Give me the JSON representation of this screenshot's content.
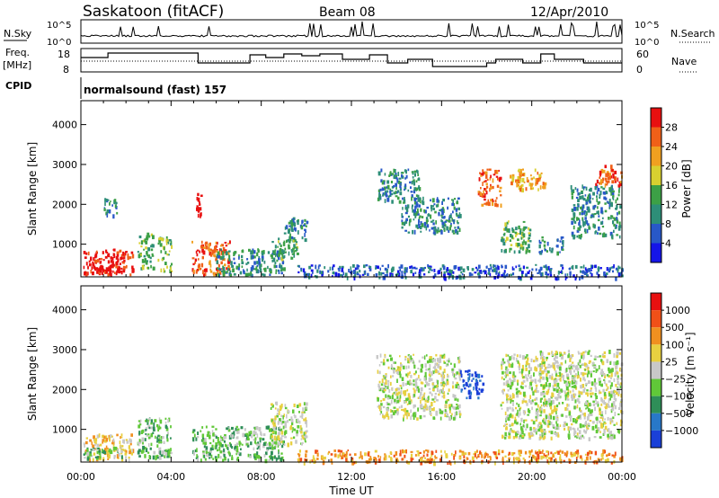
{
  "header": {
    "site": "Saskatoon (fitACF)",
    "beam": "Beam 08",
    "date": "12/Apr/2010"
  },
  "sky_panel": {
    "left_label": "N.Sky",
    "right_label": "N.Search",
    "tick_top": "10^5",
    "tick_bottom": "10^0"
  },
  "freq_panel": {
    "left_label_1": "Freq.",
    "left_label_2": "[MHz]",
    "left_ticks": [
      "18",
      "8"
    ],
    "right_ticks": [
      "60",
      "0"
    ],
    "right_label": "Nave"
  },
  "cpid": {
    "label": "CPID",
    "value": "normalsound (fast) 157"
  },
  "chart_data": [
    {
      "type": "heatmap",
      "quantity": "power",
      "ylabel": "Slant Range [km]",
      "xlabel": "",
      "yticks": [
        "1000",
        "2000",
        "3000",
        "4000"
      ],
      "ylim": [
        180,
        4600
      ],
      "xlim": [
        0,
        24
      ],
      "colorbar": {
        "label": "Power [dB]",
        "ticks": [
          "4",
          "8",
          "12",
          "16",
          "20",
          "24",
          "28"
        ],
        "colors": [
          "#1515e8",
          "#2858c8",
          "#2d8e78",
          "#3ca046",
          "#d8d030",
          "#f0a020",
          "#f06018",
          "#e81010"
        ]
      },
      "regions": [
        {
          "t0": 0.1,
          "t1": 2.3,
          "r0": 250,
          "r1": 900,
          "level": 7
        },
        {
          "t0": 0.1,
          "t1": 1.8,
          "r0": 300,
          "r1": 600,
          "level": 8
        },
        {
          "t0": 1.0,
          "t1": 1.6,
          "r0": 1700,
          "r1": 2200,
          "level": 2
        },
        {
          "t0": 2.5,
          "t1": 3.2,
          "r0": 400,
          "r1": 1300,
          "level": 3
        },
        {
          "t0": 3.4,
          "t1": 4.0,
          "r0": 300,
          "r1": 1200,
          "level": 3
        },
        {
          "t0": 4.9,
          "t1": 6.6,
          "r0": 250,
          "r1": 1100,
          "level": 6
        },
        {
          "t0": 5.1,
          "t1": 5.3,
          "r0": 1700,
          "r1": 2300,
          "level": 8
        },
        {
          "t0": 6.0,
          "t1": 9.0,
          "r0": 250,
          "r1": 900,
          "level": 2
        },
        {
          "t0": 8.4,
          "t1": 9.6,
          "r0": 650,
          "r1": 1200,
          "level": 3
        },
        {
          "t0": 9.0,
          "t1": 10.0,
          "r0": 1100,
          "r1": 1700,
          "level": 2
        },
        {
          "t0": 13.1,
          "t1": 15.0,
          "r0": 2100,
          "r1": 2900,
          "level": 2
        },
        {
          "t0": 14.2,
          "t1": 16.8,
          "r0": 1300,
          "r1": 2200,
          "level": 2
        },
        {
          "t0": 18.6,
          "t1": 19.9,
          "r0": 800,
          "r1": 1600,
          "level": 3
        },
        {
          "t0": 17.6,
          "t1": 18.6,
          "r0": 2000,
          "r1": 2900,
          "level": 6
        },
        {
          "t0": 19.0,
          "t1": 20.6,
          "r0": 2400,
          "r1": 2900,
          "level": 5
        },
        {
          "t0": 20.3,
          "t1": 21.4,
          "r0": 800,
          "r1": 1200,
          "level": 2
        },
        {
          "t0": 21.7,
          "t1": 23.9,
          "r0": 1200,
          "r1": 2500,
          "level": 2
        },
        {
          "t0": 22.8,
          "t1": 24.0,
          "r0": 2500,
          "r1": 3000,
          "level": 6
        },
        {
          "t0": 9.6,
          "t1": 24.0,
          "r0": 180,
          "r1": 500,
          "level": 1
        }
      ]
    },
    {
      "type": "heatmap",
      "quantity": "velocity",
      "ylabel": "Slant Range [km]",
      "xlabel": "Time UT",
      "xticks": [
        "00:00",
        "04:00",
        "08:00",
        "12:00",
        "16:00",
        "20:00",
        "00:00"
      ],
      "yticks": [
        "1000",
        "2000",
        "3000",
        "4000"
      ],
      "ylim": [
        180,
        4600
      ],
      "xlim": [
        0,
        24
      ],
      "colorbar": {
        "label": "Velocity [m s⁻¹]",
        "ticks": [
          "1000",
          "500",
          "100",
          "25",
          "−25",
          "−100",
          "−500",
          "−1000"
        ],
        "colors": [
          "#1a40d8",
          "#2878c8",
          "#2e8e58",
          "#60c838",
          "#c8c8c8",
          "#e8d040",
          "#f09020",
          "#f05018",
          "#e81010"
        ]
      },
      "regions": [
        {
          "t0": 0.1,
          "t1": 2.3,
          "r0": 250,
          "r1": 900,
          "level": 5
        },
        {
          "t0": 0.1,
          "t1": 1.8,
          "r0": 300,
          "r1": 600,
          "level": 3
        },
        {
          "t0": 2.5,
          "t1": 4.0,
          "r0": 300,
          "r1": 1300,
          "level": 3
        },
        {
          "t0": 4.9,
          "t1": 9.0,
          "r0": 250,
          "r1": 1100,
          "level": 3
        },
        {
          "t0": 8.4,
          "t1": 10.0,
          "r0": 650,
          "r1": 1700,
          "level": 4
        },
        {
          "t0": 13.1,
          "t1": 16.8,
          "r0": 1300,
          "r1": 2900,
          "level": 4
        },
        {
          "t0": 16.8,
          "t1": 17.8,
          "r0": 1800,
          "r1": 2500,
          "level": 0
        },
        {
          "t0": 18.6,
          "t1": 20.6,
          "r0": 800,
          "r1": 2900,
          "level": 4
        },
        {
          "t0": 20.3,
          "t1": 24.0,
          "r0": 800,
          "r1": 3000,
          "level": 4
        },
        {
          "t0": 9.6,
          "t1": 24.0,
          "r0": 180,
          "r1": 500,
          "level": 6
        }
      ]
    }
  ]
}
